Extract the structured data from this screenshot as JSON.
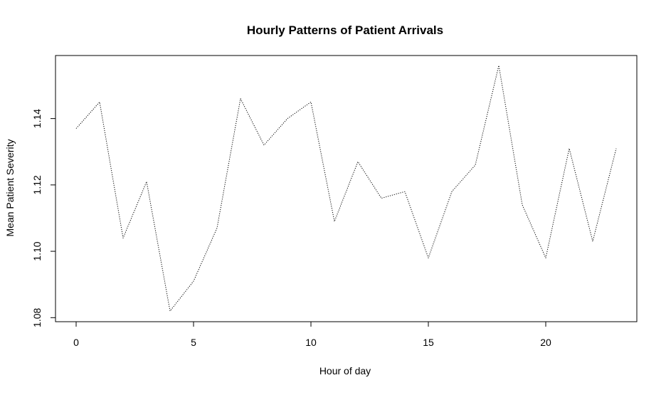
{
  "chart_data": {
    "type": "line",
    "title": "Hourly Patterns of Patient Arrivals",
    "xlabel": "Hour of day",
    "ylabel": "Mean Patient Severity",
    "xlim": [
      0,
      23
    ],
    "ylim": [
      1.082,
      1.156
    ],
    "x_ticks": [
      0,
      5,
      10,
      15,
      20
    ],
    "x_tick_labels": [
      "0",
      "5",
      "10",
      "15",
      "20"
    ],
    "y_ticks": [
      1.08,
      1.1,
      1.12,
      1.14
    ],
    "y_tick_labels": [
      "1.08",
      "1.10",
      "1.12",
      "1.14"
    ],
    "grid": false,
    "line_style": "dotted",
    "line_color": "#000000",
    "series": [
      {
        "x": [
          0,
          1,
          2,
          3,
          4,
          5,
          6,
          7,
          8,
          9,
          10,
          11,
          12,
          13,
          14,
          15,
          16,
          17,
          18,
          19,
          20,
          21,
          22,
          23
        ],
        "values": [
          1.137,
          1.145,
          1.104,
          1.121,
          1.082,
          1.091,
          1.107,
          1.146,
          1.132,
          1.14,
          1.145,
          1.109,
          1.127,
          1.116,
          1.118,
          1.098,
          1.118,
          1.126,
          1.156,
          1.114,
          1.098,
          1.131,
          1.103,
          1.131
        ]
      }
    ]
  }
}
